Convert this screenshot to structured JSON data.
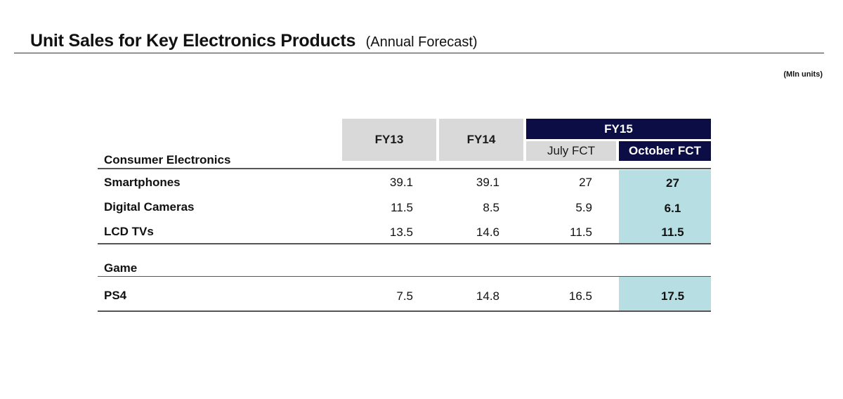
{
  "title": {
    "main": "Unit Sales for Key Electronics Products",
    "sub": "(Annual Forecast)"
  },
  "units_label": "(Mln units)",
  "table": {
    "headers": {
      "fy13": "FY13",
      "fy14": "FY14",
      "fy15": "FY15",
      "july_fct": "July FCT",
      "october_fct": "October FCT"
    },
    "sections": [
      {
        "name": "Consumer Electronics",
        "rows": [
          {
            "label": "Smartphones",
            "fy13": "39.1",
            "fy14": "39.1",
            "july": "27",
            "october": "27"
          },
          {
            "label": "Digital Cameras",
            "fy13": "11.5",
            "fy14": "8.5",
            "july": "5.9",
            "october": "6.1"
          },
          {
            "label": "LCD TVs",
            "fy13": "13.5",
            "fy14": "14.6",
            "july": "11.5",
            "october": "11.5"
          }
        ]
      },
      {
        "name": "Game",
        "rows": [
          {
            "label": "PS4",
            "fy13": "7.5",
            "fy14": "14.8",
            "july": "16.5",
            "october": "17.5"
          }
        ]
      }
    ]
  },
  "colors": {
    "navy_header": "#0d0d45",
    "gray_header": "#d9d9d9",
    "highlight_column": "#b7dfe3"
  }
}
